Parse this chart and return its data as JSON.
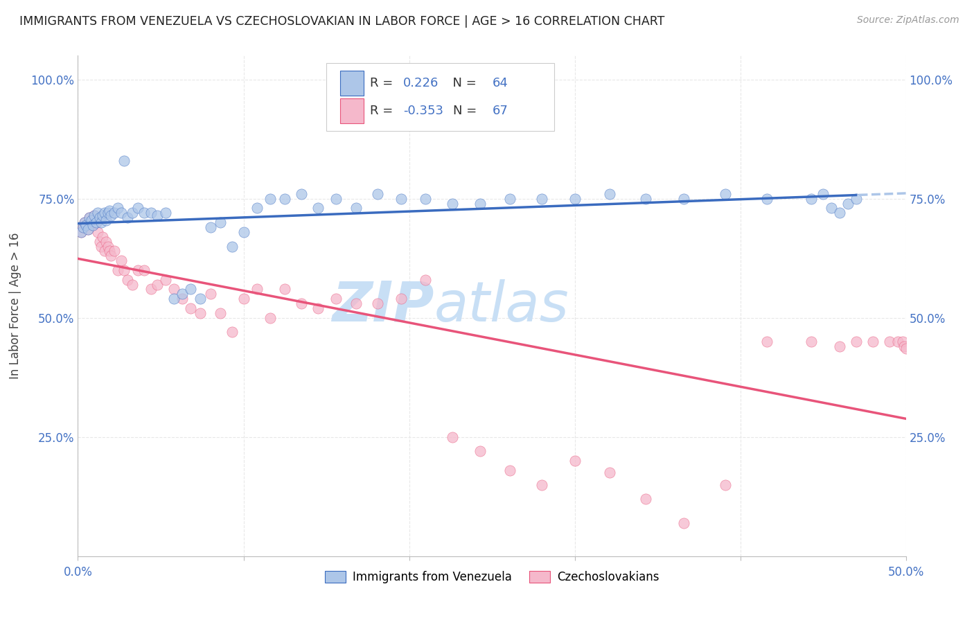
{
  "title": "IMMIGRANTS FROM VENEZUELA VS CZECHOSLOVAKIAN IN LABOR FORCE | AGE > 16 CORRELATION CHART",
  "source": "Source: ZipAtlas.com",
  "ylabel": "In Labor Force | Age > 16",
  "xlim": [
    0.0,
    0.5
  ],
  "ylim": [
    0.0,
    1.05
  ],
  "ytick_labels": [
    "25.0%",
    "50.0%",
    "75.0%",
    "100.0%"
  ],
  "ytick_positions": [
    0.25,
    0.5,
    0.75,
    1.0
  ],
  "r_venezuela": 0.226,
  "n_venezuela": 64,
  "r_czech": -0.353,
  "n_czech": 67,
  "color_venezuela": "#adc6e8",
  "color_czech": "#f5b8cb",
  "line_color_venezuela": "#3a6bbf",
  "line_color_czech": "#e8547a",
  "line_color_venezuela_dash": "#adc6e8",
  "watermark_zip": "ZIP",
  "watermark_atlas": "atlas",
  "watermark_color": "#c8dff5",
  "background_color": "#ffffff",
  "grid_color": "#e8e8e8",
  "grid_style": "--",
  "title_color": "#222222",
  "axis_label_color": "#4472c4",
  "venezuela_scatter_x": [
    0.002,
    0.003,
    0.004,
    0.005,
    0.006,
    0.007,
    0.008,
    0.009,
    0.01,
    0.011,
    0.012,
    0.013,
    0.014,
    0.015,
    0.016,
    0.017,
    0.018,
    0.019,
    0.02,
    0.022,
    0.024,
    0.026,
    0.028,
    0.03,
    0.033,
    0.036,
    0.04,
    0.044,
    0.048,
    0.053,
    0.058,
    0.063,
    0.068,
    0.074,
    0.08,
    0.086,
    0.093,
    0.1,
    0.108,
    0.116,
    0.125,
    0.135,
    0.145,
    0.156,
    0.168,
    0.181,
    0.195,
    0.21,
    0.226,
    0.243,
    0.261,
    0.28,
    0.3,
    0.321,
    0.343,
    0.366,
    0.391,
    0.416,
    0.443,
    0.45,
    0.455,
    0.46,
    0.465,
    0.47
  ],
  "venezuela_scatter_y": [
    0.68,
    0.69,
    0.7,
    0.695,
    0.685,
    0.71,
    0.705,
    0.695,
    0.715,
    0.7,
    0.72,
    0.71,
    0.7,
    0.715,
    0.72,
    0.705,
    0.72,
    0.725,
    0.715,
    0.72,
    0.73,
    0.72,
    0.83,
    0.71,
    0.72,
    0.73,
    0.72,
    0.72,
    0.715,
    0.72,
    0.54,
    0.55,
    0.56,
    0.54,
    0.69,
    0.7,
    0.65,
    0.68,
    0.73,
    0.75,
    0.75,
    0.76,
    0.73,
    0.75,
    0.73,
    0.76,
    0.75,
    0.75,
    0.74,
    0.74,
    0.75,
    0.75,
    0.75,
    0.76,
    0.75,
    0.75,
    0.76,
    0.75,
    0.75,
    0.76,
    0.73,
    0.72,
    0.74,
    0.75
  ],
  "czech_scatter_x": [
    0.002,
    0.003,
    0.004,
    0.005,
    0.006,
    0.007,
    0.008,
    0.009,
    0.01,
    0.011,
    0.012,
    0.013,
    0.014,
    0.015,
    0.016,
    0.017,
    0.018,
    0.019,
    0.02,
    0.022,
    0.024,
    0.026,
    0.028,
    0.03,
    0.033,
    0.036,
    0.04,
    0.044,
    0.048,
    0.053,
    0.058,
    0.063,
    0.068,
    0.074,
    0.08,
    0.086,
    0.093,
    0.1,
    0.108,
    0.116,
    0.125,
    0.135,
    0.145,
    0.156,
    0.168,
    0.181,
    0.195,
    0.21,
    0.226,
    0.243,
    0.261,
    0.28,
    0.3,
    0.321,
    0.343,
    0.366,
    0.391,
    0.416,
    0.443,
    0.46,
    0.47,
    0.48,
    0.49,
    0.495,
    0.498,
    0.499,
    0.5
  ],
  "czech_scatter_y": [
    0.68,
    0.69,
    0.7,
    0.695,
    0.685,
    0.71,
    0.705,
    0.695,
    0.715,
    0.7,
    0.68,
    0.66,
    0.65,
    0.67,
    0.64,
    0.66,
    0.65,
    0.64,
    0.63,
    0.64,
    0.6,
    0.62,
    0.6,
    0.58,
    0.57,
    0.6,
    0.6,
    0.56,
    0.57,
    0.58,
    0.56,
    0.54,
    0.52,
    0.51,
    0.55,
    0.51,
    0.47,
    0.54,
    0.56,
    0.5,
    0.56,
    0.53,
    0.52,
    0.54,
    0.53,
    0.53,
    0.54,
    0.58,
    0.25,
    0.22,
    0.18,
    0.15,
    0.2,
    0.175,
    0.12,
    0.07,
    0.15,
    0.45,
    0.45,
    0.44,
    0.45,
    0.45,
    0.45,
    0.45,
    0.45,
    0.44,
    0.435
  ]
}
